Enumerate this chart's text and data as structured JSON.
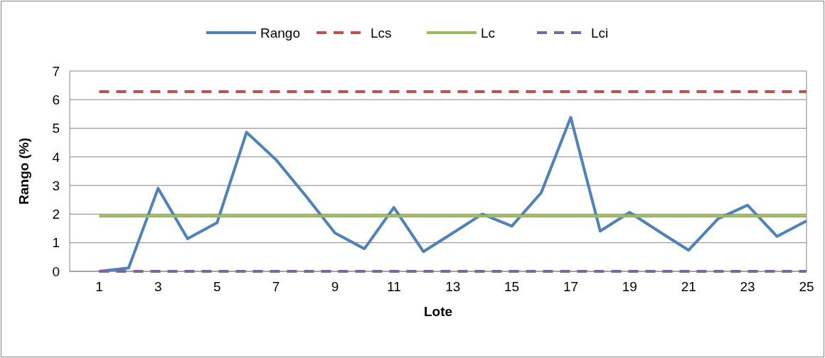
{
  "chart_data": {
    "type": "line",
    "xlabel": "Lote",
    "ylabel": "Rango (%)",
    "x": [
      1,
      2,
      3,
      4,
      5,
      6,
      7,
      8,
      9,
      10,
      11,
      12,
      13,
      14,
      15,
      16,
      17,
      18,
      19,
      20,
      21,
      22,
      23,
      24,
      25
    ],
    "xlim": [
      0,
      25
    ],
    "xticks": [
      1,
      3,
      5,
      7,
      9,
      11,
      13,
      15,
      17,
      19,
      21,
      23,
      25
    ],
    "ylim": [
      0,
      7
    ],
    "yticks": [
      0,
      1,
      2,
      3,
      4,
      5,
      6,
      7
    ],
    "grid": "y",
    "legend": "top",
    "marker": "none",
    "series": [
      {
        "name": "Rango",
        "color": "#4f81bd",
        "line_style": "solid",
        "values": [
          0,
          0.12,
          2.9,
          1.14,
          1.7,
          4.86,
          3.9,
          2.65,
          1.34,
          0.79,
          2.23,
          0.69,
          1.34,
          2.0,
          1.58,
          2.75,
          5.38,
          1.41,
          2.06,
          1.39,
          0.74,
          1.84,
          2.31,
          1.22,
          1.76
        ]
      },
      {
        "name": "Lcs",
        "color": "#c0504d",
        "line_style": "dashed",
        "values": [
          6.28,
          6.28,
          6.28,
          6.28,
          6.28,
          6.28,
          6.28,
          6.28,
          6.28,
          6.28,
          6.28,
          6.28,
          6.28,
          6.28,
          6.28,
          6.28,
          6.28,
          6.28,
          6.28,
          6.28,
          6.28,
          6.28,
          6.28,
          6.28,
          6.28
        ]
      },
      {
        "name": "Lc",
        "color": "#9bbb59",
        "line_style": "solid",
        "values": [
          1.93,
          1.93,
          1.93,
          1.93,
          1.93,
          1.93,
          1.93,
          1.93,
          1.93,
          1.93,
          1.93,
          1.93,
          1.93,
          1.93,
          1.93,
          1.93,
          1.93,
          1.93,
          1.93,
          1.93,
          1.93,
          1.93,
          1.93,
          1.93,
          1.93
        ]
      },
      {
        "name": "Lci",
        "color": "#8064a2",
        "line_style": "dashed",
        "values": [
          0,
          0,
          0,
          0,
          0,
          0,
          0,
          0,
          0,
          0,
          0,
          0,
          0,
          0,
          0,
          0,
          0,
          0,
          0,
          0,
          0,
          0,
          0,
          0,
          0
        ]
      }
    ]
  }
}
